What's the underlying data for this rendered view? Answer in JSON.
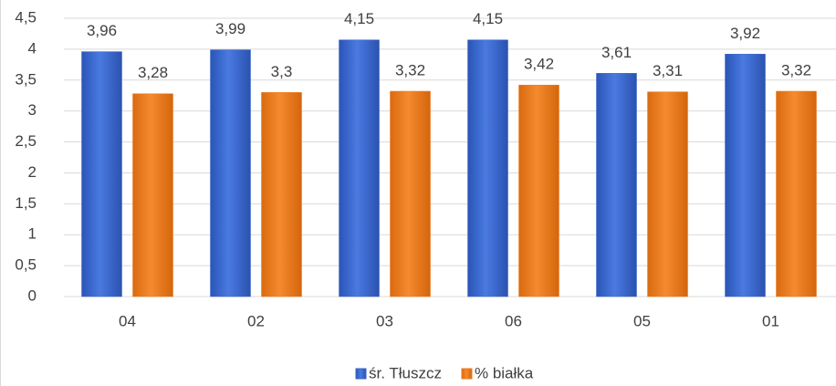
{
  "chart_data": {
    "type": "bar",
    "categories": [
      "04",
      "02",
      "03",
      "06",
      "05",
      "01"
    ],
    "series": [
      {
        "name": "śr. Tłuszcz",
        "color": "#3a66cc",
        "values": [
          3.96,
          3.99,
          4.15,
          4.15,
          3.61,
          3.92
        ],
        "value_labels": [
          "3,96",
          "3,99",
          "4,15",
          "4,15",
          "3,61",
          "3,92"
        ]
      },
      {
        "name": "% białka",
        "color": "#ee7a1e",
        "values": [
          3.28,
          3.3,
          3.32,
          3.42,
          3.31,
          3.32
        ],
        "value_labels": [
          "3,28",
          "3,3",
          "3,32",
          "3,42",
          "3,31",
          "3,32"
        ]
      }
    ],
    "ylim": [
      0,
      4.5
    ],
    "yticks": [
      0,
      {
        "value": 0.5,
        "label": "0,5"
      },
      1,
      {
        "value": 1.5,
        "label": "1,5"
      },
      2,
      {
        "value": 2.5,
        "label": "2,5"
      },
      3,
      {
        "value": 3.5,
        "label": "3,5"
      },
      4,
      {
        "value": 4.5,
        "label": "4,5"
      }
    ],
    "grid": true,
    "legend": "bottom"
  }
}
